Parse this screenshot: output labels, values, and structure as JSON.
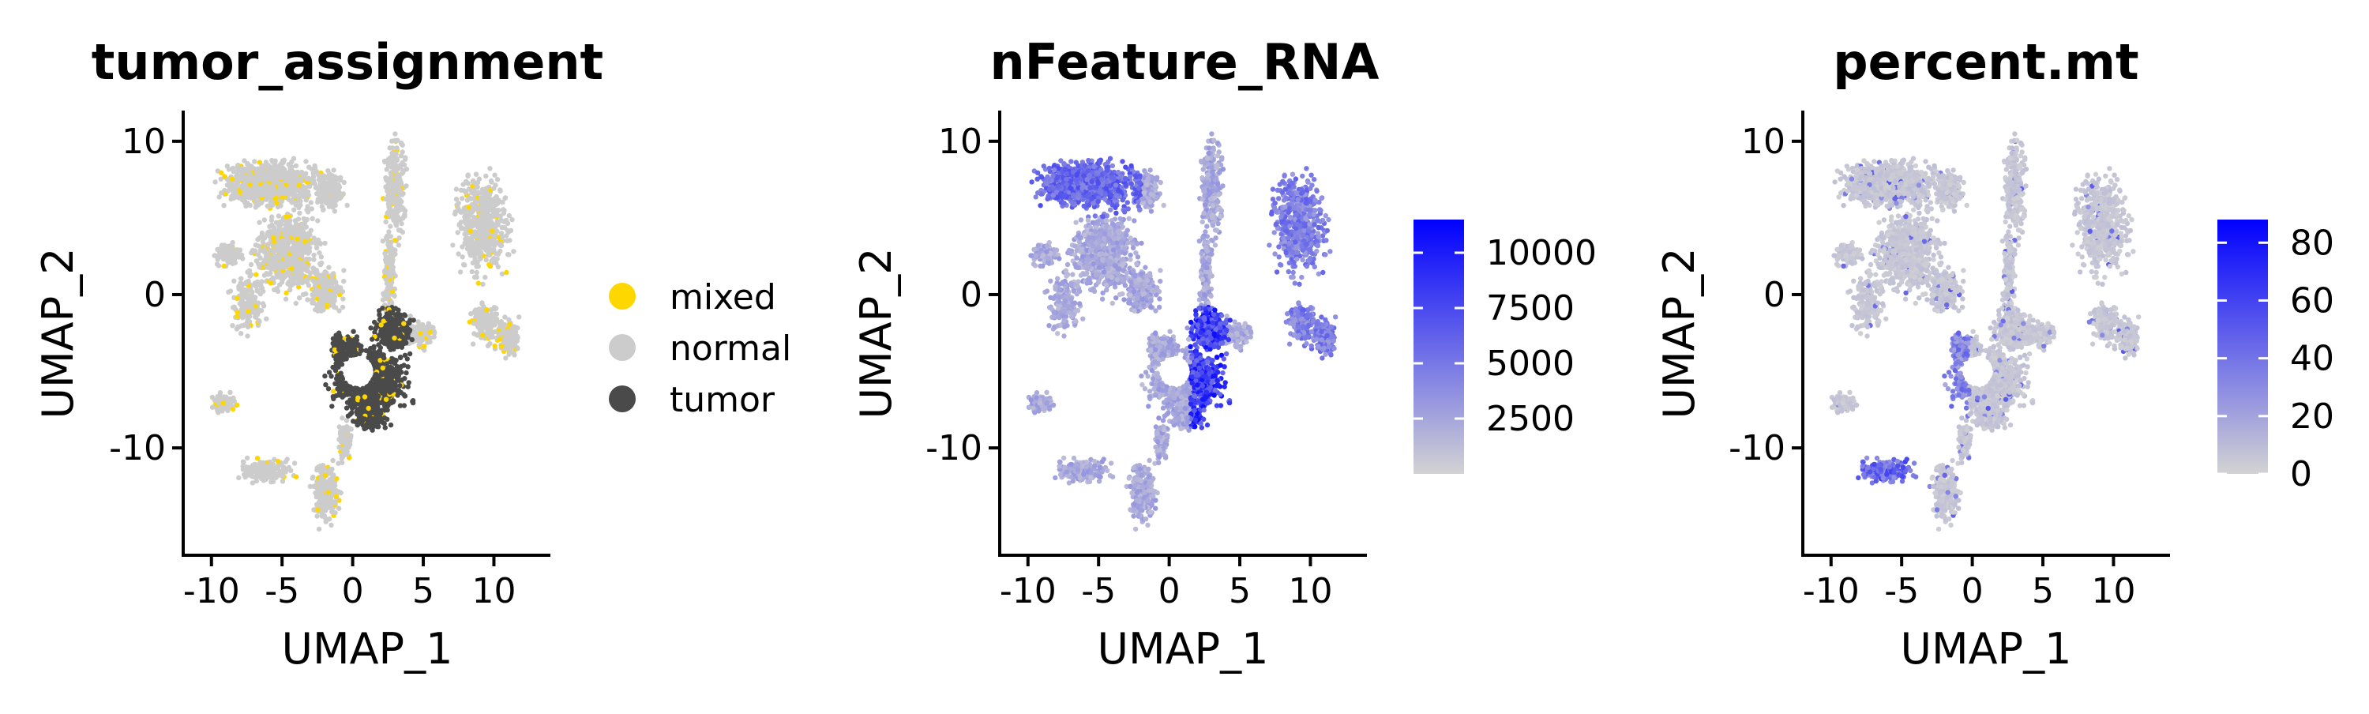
{
  "colors": {
    "mixed": "#FFD700",
    "normal": "#CCCCCC",
    "tumor": "#4A4A4A",
    "gradient_low": "#D3D3D3",
    "gradient_high": "#0000FF"
  },
  "chart_data": [
    {
      "type": "scatter",
      "title": "tumor_assignment",
      "xlabel": "UMAP_1",
      "ylabel": "UMAP_2",
      "xlim": [
        -12,
        14
      ],
      "ylim": [
        -17,
        12
      ],
      "xticks": [
        -10,
        -5,
        0,
        5,
        10
      ],
      "yticks": [
        10,
        0,
        -10
      ],
      "xtick_labels": [
        "-10",
        "-5",
        "0",
        "5",
        "10"
      ],
      "ytick_labels": [
        "10",
        "0",
        "-10"
      ],
      "legend": {
        "position": "right",
        "entries": [
          {
            "label": "mixed",
            "color_key": "mixed"
          },
          {
            "label": "normal",
            "color_key": "normal"
          },
          {
            "label": "tumor",
            "color_key": "tumor"
          }
        ]
      }
    },
    {
      "type": "scatter",
      "title": "nFeature_RNA",
      "xlabel": "UMAP_1",
      "ylabel": "UMAP_2",
      "xlim": [
        -12,
        14
      ],
      "ylim": [
        -17,
        12
      ],
      "xticks": [
        -10,
        -5,
        0,
        5,
        10
      ],
      "yticks": [
        10,
        0,
        -10
      ],
      "xtick_labels": [
        "-10",
        "-5",
        "0",
        "5",
        "10"
      ],
      "ytick_labels": [
        "10",
        "0",
        "-10"
      ],
      "colorbar": {
        "min": 0,
        "max": 11500,
        "ticks": [
          10000,
          7500,
          5000,
          2500
        ],
        "tick_labels": [
          "10000",
          "7500",
          "5000",
          "2500"
        ]
      }
    },
    {
      "type": "scatter",
      "title": "percent.mt",
      "xlabel": "UMAP_1",
      "ylabel": "UMAP_2",
      "xlim": [
        -12,
        14
      ],
      "ylim": [
        -17,
        12
      ],
      "xticks": [
        -10,
        -5,
        0,
        5,
        10
      ],
      "yticks": [
        10,
        0,
        -10
      ],
      "xtick_labels": [
        "-10",
        "-5",
        "0",
        "5",
        "10"
      ],
      "ytick_labels": [
        "10",
        "0",
        "-10"
      ],
      "colorbar": {
        "min": 0,
        "max": 88,
        "ticks": [
          80,
          60,
          40,
          20,
          0
        ],
        "tick_labels": [
          "80",
          "60",
          "40",
          "20",
          "0"
        ]
      }
    }
  ]
}
